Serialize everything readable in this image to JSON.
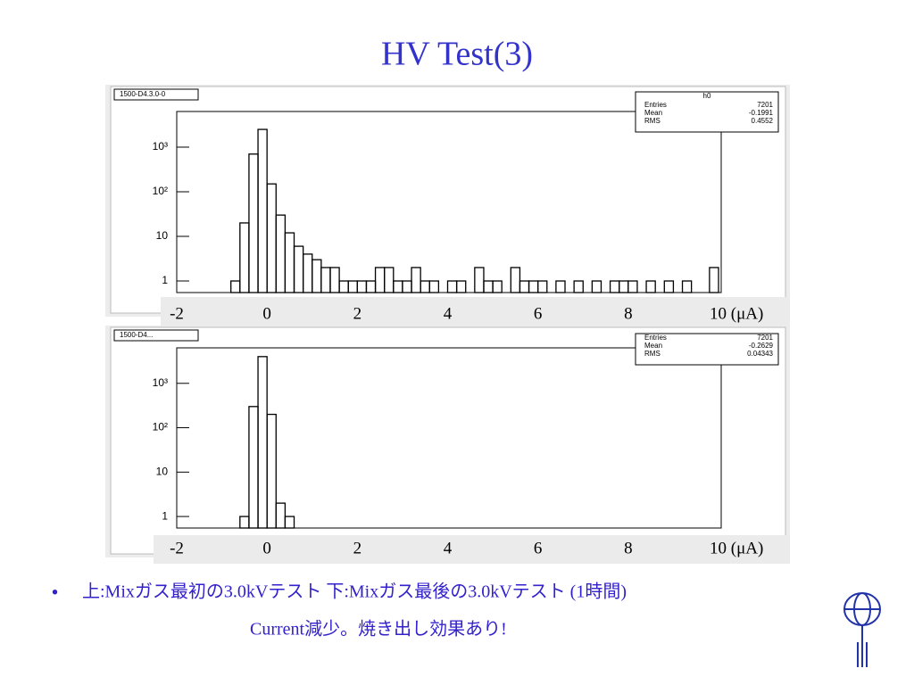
{
  "title": "HV Test(3)",
  "chart_data": [
    {
      "type": "histogram",
      "label": "1500-D4.3.0-0",
      "stats": {
        "title": "h0",
        "rows": [
          [
            "Entries",
            7201
          ],
          [
            "Mean",
            -0.1991
          ],
          [
            "RMS",
            0.4552
          ]
        ]
      },
      "bins": [
        -1.0,
        -0.8,
        -0.6,
        -0.4,
        -0.2,
        0.0,
        0.2,
        0.4,
        0.6,
        0.8,
        1.0,
        1.2,
        1.4,
        1.6,
        1.8,
        2.0,
        2.2,
        2.4,
        2.6,
        2.8,
        3.0,
        3.2,
        3.4,
        3.6,
        3.8,
        4.0,
        4.2,
        4.4,
        4.6,
        4.8,
        5.0,
        5.2,
        5.4,
        5.6,
        5.8,
        6.0,
        6.2,
        6.4,
        6.6,
        6.8,
        7.0,
        7.2,
        7.4,
        7.6,
        7.8,
        8.0,
        8.2,
        8.4,
        8.6,
        8.8,
        9.0,
        9.2,
        9.4,
        9.6,
        9.8,
        10.0
      ],
      "values": [
        0,
        1,
        20,
        700,
        2500,
        150,
        30,
        12,
        6,
        4,
        3,
        2,
        2,
        1,
        1,
        1,
        1,
        2,
        2,
        1,
        1,
        2,
        1,
        1,
        0,
        1,
        1,
        0,
        2,
        1,
        1,
        0,
        2,
        1,
        1,
        1,
        0,
        1,
        0,
        1,
        0,
        1,
        0,
        1,
        1,
        1,
        0,
        1,
        0,
        1,
        0,
        1,
        0,
        0,
        2
      ],
      "color": "#000000",
      "log_y": true,
      "xlim": [
        -2,
        10
      ],
      "xticks": [
        -2,
        0,
        2,
        4,
        6,
        8,
        {
          "value": 10,
          "label": "10 (μA)"
        }
      ],
      "ylim": [
        0.55,
        6300
      ],
      "yticks": [
        1,
        10,
        {
          "value": 100,
          "label": "10²"
        },
        {
          "value": 1000,
          "label": "10³"
        }
      ]
    },
    {
      "type": "histogram",
      "label": "1500-D4...",
      "stats": {
        "rows": [
          [
            "Entries",
            7201
          ],
          [
            "Mean",
            -0.2629
          ],
          [
            "RMS",
            0.04343
          ]
        ]
      },
      "bins": [
        -1.0,
        -0.8,
        -0.6,
        -0.4,
        -0.2,
        0.0,
        0.2,
        0.4,
        0.6
      ],
      "values": [
        0,
        0,
        1,
        300,
        4000,
        200,
        2,
        1
      ],
      "color": "#000000",
      "log_y": true,
      "xlim": [
        -2,
        10
      ],
      "xticks": [
        -2,
        0,
        2,
        4,
        6,
        8,
        {
          "value": 10,
          "label": "10 (μA)"
        }
      ],
      "ylim": [
        0.55,
        6300
      ],
      "yticks": [
        1,
        10,
        {
          "value": 100,
          "label": "10²"
        },
        {
          "value": 1000,
          "label": "10³"
        }
      ]
    }
  ],
  "bullets": [
    "上:Mixガス最初の3.0kVテスト 下:Mixガス最後の3.0kVテスト (1時間)",
    "Current減少。焼き出し効果あり!"
  ]
}
